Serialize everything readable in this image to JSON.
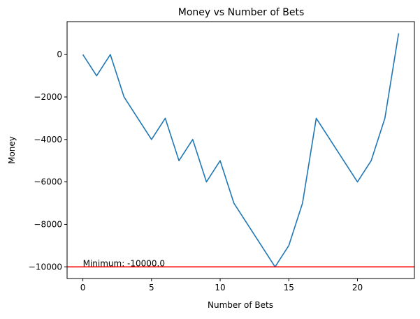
{
  "chart_data": {
    "type": "line",
    "title": "Money vs Number of Bets",
    "xlabel": "Number of Bets",
    "ylabel": "Money",
    "xlim": [
      -1.15,
      24.15
    ],
    "ylim": [
      -10550,
      1550
    ],
    "x_ticks": [
      0,
      5,
      10,
      15,
      20
    ],
    "x_tick_labels": [
      "0",
      "5",
      "10",
      "15",
      "20"
    ],
    "y_ticks": [
      0,
      -2000,
      -4000,
      -6000,
      -8000,
      -10000
    ],
    "y_tick_labels": [
      "0",
      "−2000",
      "−4000",
      "−6000",
      "−8000",
      "−10000"
    ],
    "series": [
      {
        "color": "#1f77b4",
        "x": [
          0,
          1,
          2,
          3,
          4,
          5,
          6,
          7,
          8,
          9,
          10,
          11,
          12,
          13,
          14,
          15,
          16,
          17,
          18,
          19,
          20,
          21,
          22,
          23
        ],
        "y": [
          0,
          -1000,
          0,
          -2000,
          -3000,
          -4000,
          -3000,
          -5000,
          -4000,
          -6000,
          -5000,
          -7000,
          -8000,
          -9000,
          -10000,
          -9000,
          -7000,
          -3000,
          -4000,
          -5000,
          -6000,
          -5000,
          -3000,
          1000
        ]
      }
    ],
    "hline": {
      "y": -10000,
      "color": "#ff0000"
    },
    "annotation": {
      "text": "Minimum: -10000.0",
      "x": 0,
      "y": -10000
    },
    "grid": false,
    "legend": "none"
  }
}
